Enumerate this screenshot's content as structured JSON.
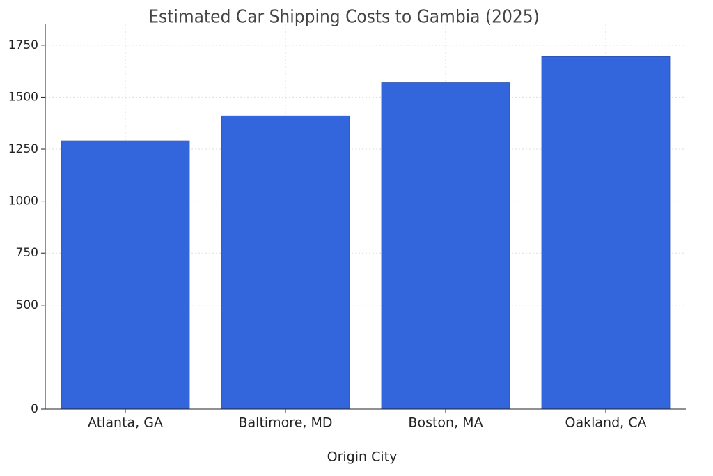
{
  "chart_data": {
    "type": "bar",
    "title": "Estimated Car Shipping Costs to Gambia (2025)",
    "x_label": "Origin City",
    "categories": [
      "Atlanta, GA",
      "Baltimore, MD",
      "Boston, MA",
      "Oakland, CA"
    ],
    "values": [
      1290,
      1410,
      1570,
      1695
    ],
    "color": "#3366dd",
    "ylim": [
      0,
      1850
    ],
    "yticks": [
      0,
      500,
      750,
      1000,
      1250,
      1500,
      1750
    ],
    "grid": true
  }
}
